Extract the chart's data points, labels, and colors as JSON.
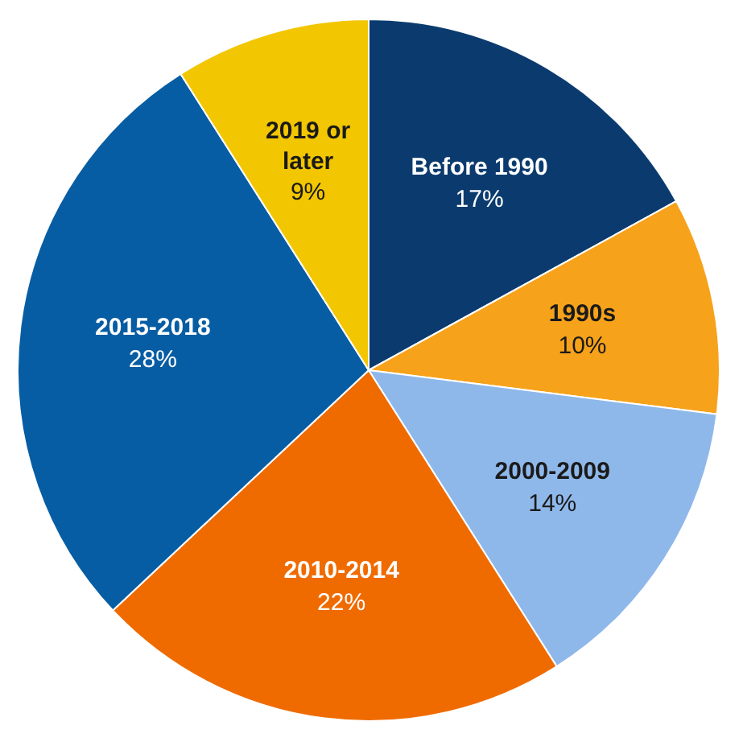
{
  "chart_data": {
    "type": "pie",
    "categories": [
      "Before 1990",
      "1990s",
      "2000-2009",
      "2010-2014",
      "2015-2018",
      "2019 or later"
    ],
    "values": [
      17,
      10,
      14,
      22,
      28,
      9
    ],
    "value_labels": [
      "17%",
      "10%",
      "14%",
      "22%",
      "28%",
      "9%"
    ],
    "colors": [
      "#0b3b6e",
      "#f7a21b",
      "#8fb8ea",
      "#ef6b00",
      "#075da3",
      "#f2c600"
    ]
  }
}
